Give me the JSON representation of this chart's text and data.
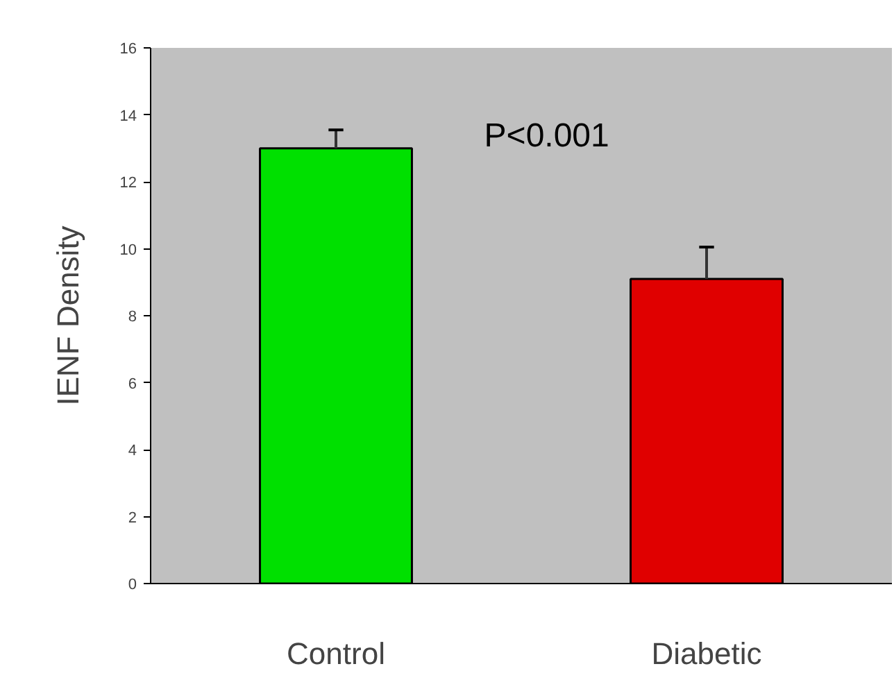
{
  "chart_data": {
    "type": "bar",
    "ylabel": "IENF Density",
    "categories": [
      "Control",
      "Diabetic"
    ],
    "values": [
      13.0,
      9.1
    ],
    "colors": [
      "#00e000",
      "#e00000"
    ],
    "errors": [
      [
        13.0,
        13.55
      ],
      [
        9.1,
        10.05
      ]
    ],
    "ylim": [
      0,
      16
    ],
    "yticks": [
      0,
      2,
      4,
      6,
      8,
      10,
      12,
      14,
      16
    ],
    "annotations": [
      "P<0.001"
    ],
    "grid": false
  }
}
